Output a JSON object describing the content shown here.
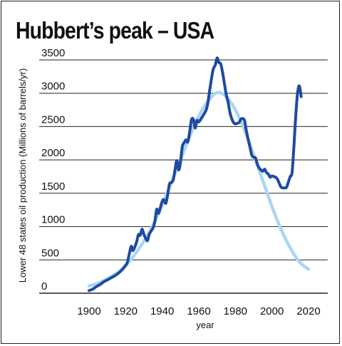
{
  "chart_data": {
    "type": "line",
    "title": "Hubbert’s peak – USA",
    "xlabel": "year",
    "ylabel": "Lower 48 states oil production (Millions of barrels/yr)",
    "xlim": [
      1900,
      2020
    ],
    "ylim": [
      0,
      3500
    ],
    "xticks": [
      "1900",
      "1920",
      "1940",
      "1960",
      "1980",
      "2000",
      "2020"
    ],
    "yticks": [
      "0",
      "500",
      "1000",
      "1500",
      "2000",
      "2500",
      "3000",
      "3500"
    ],
    "grid": "horizontal",
    "legend": "none",
    "series": [
      {
        "color": "#1f4aa0",
        "points": [
          [
            1900,
            40
          ],
          [
            1902,
            60
          ],
          [
            1904,
            100
          ],
          [
            1906,
            130
          ],
          [
            1908,
            170
          ],
          [
            1910,
            200
          ],
          [
            1912,
            230
          ],
          [
            1914,
            260
          ],
          [
            1916,
            300
          ],
          [
            1918,
            350
          ],
          [
            1920,
            420
          ],
          [
            1921,
            470
          ],
          [
            1923,
            700
          ],
          [
            1924,
            640
          ],
          [
            1926,
            770
          ],
          [
            1927,
            880
          ],
          [
            1928,
            870
          ],
          [
            1929,
            960
          ],
          [
            1930,
            880
          ],
          [
            1931,
            820
          ],
          [
            1932,
            790
          ],
          [
            1933,
            890
          ],
          [
            1935,
            980
          ],
          [
            1936,
            1080
          ],
          [
            1937,
            1260
          ],
          [
            1938,
            1200
          ],
          [
            1940,
            1380
          ],
          [
            1941,
            1400
          ],
          [
            1942,
            1350
          ],
          [
            1943,
            1480
          ],
          [
            1944,
            1640
          ],
          [
            1945,
            1660
          ],
          [
            1946,
            1700
          ],
          [
            1947,
            1850
          ],
          [
            1948,
            1990
          ],
          [
            1949,
            1850
          ],
          [
            1950,
            1970
          ],
          [
            1951,
            2200
          ],
          [
            1952,
            2260
          ],
          [
            1953,
            2300
          ],
          [
            1954,
            2270
          ],
          [
            1955,
            2420
          ],
          [
            1956,
            2600
          ],
          [
            1957,
            2610
          ],
          [
            1958,
            2480
          ],
          [
            1959,
            2590
          ],
          [
            1960,
            2570
          ],
          [
            1962,
            2650
          ],
          [
            1964,
            2750
          ],
          [
            1965,
            2860
          ],
          [
            1966,
            3050
          ],
          [
            1967,
            3230
          ],
          [
            1968,
            3370
          ],
          [
            1969,
            3420
          ],
          [
            1970,
            3530
          ],
          [
            1971,
            3460
          ],
          [
            1972,
            3440
          ],
          [
            1973,
            3310
          ],
          [
            1974,
            3150
          ],
          [
            1975,
            2980
          ],
          [
            1976,
            2870
          ],
          [
            1977,
            2720
          ],
          [
            1978,
            2620
          ],
          [
            1979,
            2560
          ],
          [
            1980,
            2540
          ],
          [
            1981,
            2550
          ],
          [
            1982,
            2560
          ],
          [
            1983,
            2610
          ],
          [
            1984,
            2620
          ],
          [
            1985,
            2590
          ],
          [
            1986,
            2440
          ],
          [
            1987,
            2310
          ],
          [
            1988,
            2190
          ],
          [
            1989,
            2070
          ],
          [
            1990,
            2040
          ],
          [
            1991,
            2030
          ],
          [
            1992,
            1940
          ],
          [
            1993,
            1880
          ],
          [
            1994,
            1850
          ],
          [
            1995,
            1830
          ],
          [
            1996,
            1860
          ],
          [
            1997,
            1810
          ],
          [
            1998,
            1790
          ],
          [
            1999,
            1740
          ],
          [
            2000,
            1760
          ],
          [
            2001,
            1750
          ],
          [
            2002,
            1740
          ],
          [
            2003,
            1710
          ],
          [
            2004,
            1650
          ],
          [
            2005,
            1590
          ],
          [
            2006,
            1580
          ],
          [
            2007,
            1580
          ],
          [
            2008,
            1590
          ],
          [
            2009,
            1670
          ],
          [
            2010,
            1750
          ],
          [
            2011,
            1810
          ],
          [
            2012,
            2200
          ],
          [
            2013,
            2650
          ],
          [
            2014,
            3000
          ],
          [
            2015,
            3110
          ],
          [
            2016,
            2950
          ]
        ]
      },
      {
        "color": "#a9d7f2",
        "points": [
          [
            1900,
            110
          ],
          [
            1905,
            150
          ],
          [
            1910,
            215
          ],
          [
            1915,
            300
          ],
          [
            1920,
            410
          ],
          [
            1925,
            580
          ],
          [
            1930,
            780
          ],
          [
            1935,
            1020
          ],
          [
            1940,
            1320
          ],
          [
            1945,
            1660
          ],
          [
            1950,
            2000
          ],
          [
            1955,
            2350
          ],
          [
            1960,
            2660
          ],
          [
            1965,
            2880
          ],
          [
            1970,
            3010
          ],
          [
            1975,
            2950
          ],
          [
            1980,
            2750
          ],
          [
            1985,
            2450
          ],
          [
            1990,
            2070
          ],
          [
            1995,
            1690
          ],
          [
            2000,
            1300
          ],
          [
            2005,
            960
          ],
          [
            2010,
            680
          ],
          [
            2015,
            470
          ],
          [
            2020,
            360
          ]
        ]
      }
    ]
  }
}
